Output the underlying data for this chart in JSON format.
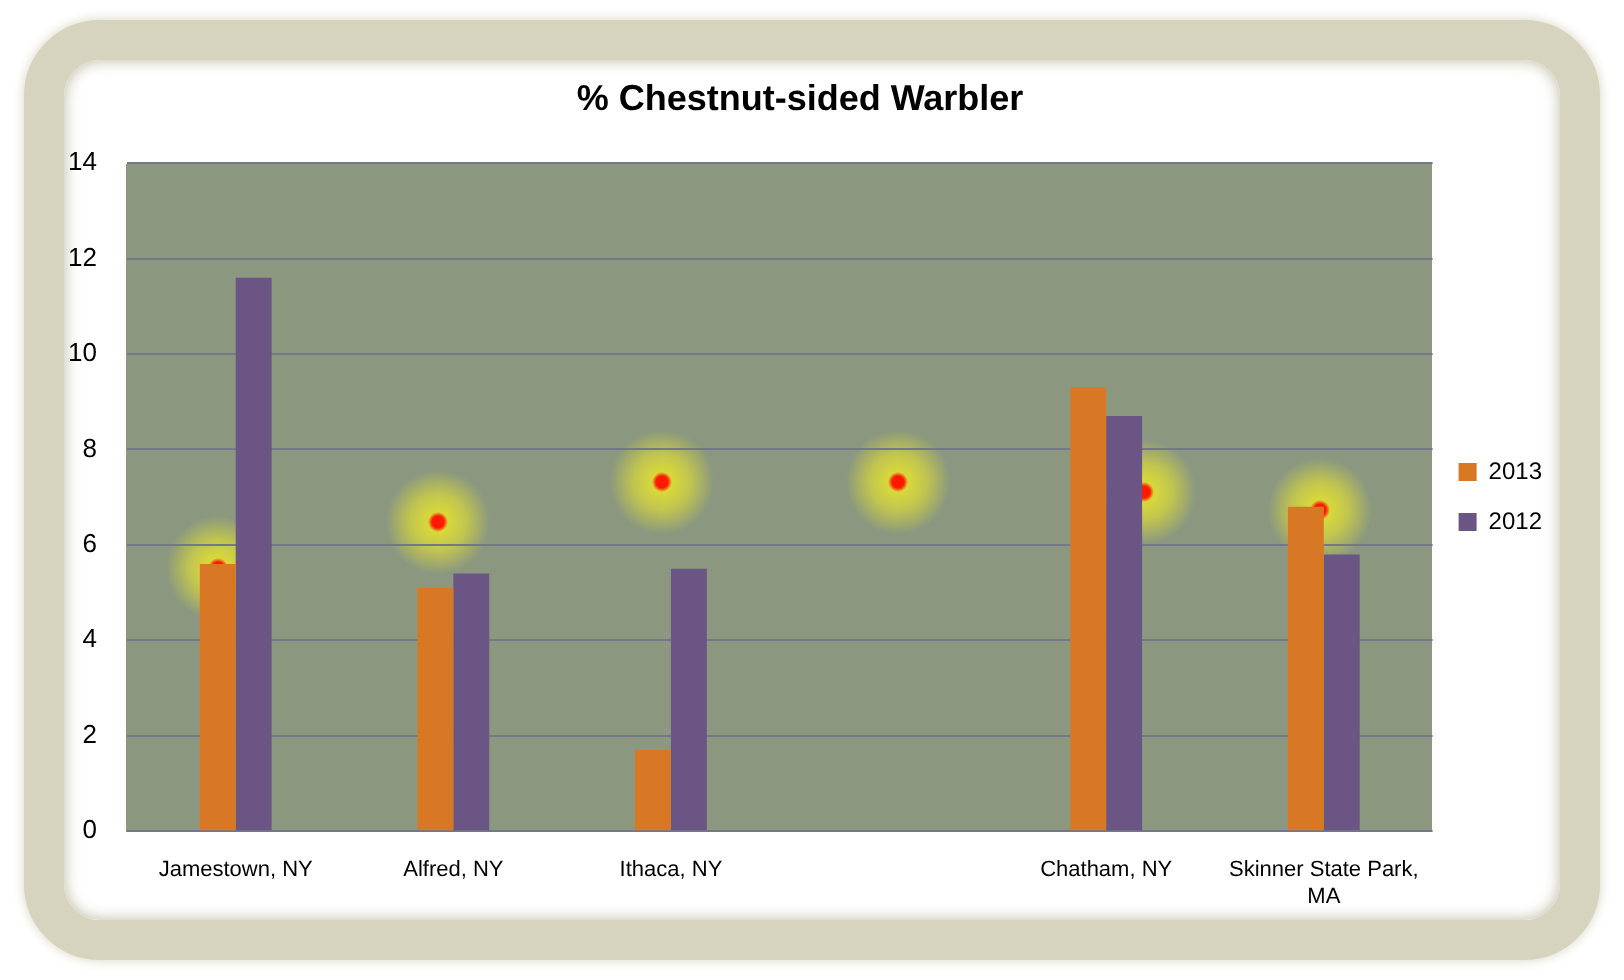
{
  "chart_data": {
    "type": "bar",
    "title": "% Chestnut-sided Warbler",
    "categories": [
      "Jamestown, NY",
      "Alfred, NY",
      "Ithaca, NY",
      null,
      "Chatham, NY",
      "Skinner State Park, MA"
    ],
    "series": [
      {
        "name": "2013",
        "color": "#d97824",
        "values": [
          5.6,
          5.1,
          1.7,
          null,
          9.3,
          6.8
        ]
      },
      {
        "name": "2012",
        "color": "#6a5584",
        "values": [
          11.6,
          5.4,
          5.5,
          null,
          8.7,
          5.8
        ]
      }
    ],
    "ylim": [
      0,
      14
    ],
    "yticks": [
      0,
      2,
      4,
      6,
      8,
      10,
      12,
      14
    ],
    "grid": "y",
    "legend": "right"
  }
}
